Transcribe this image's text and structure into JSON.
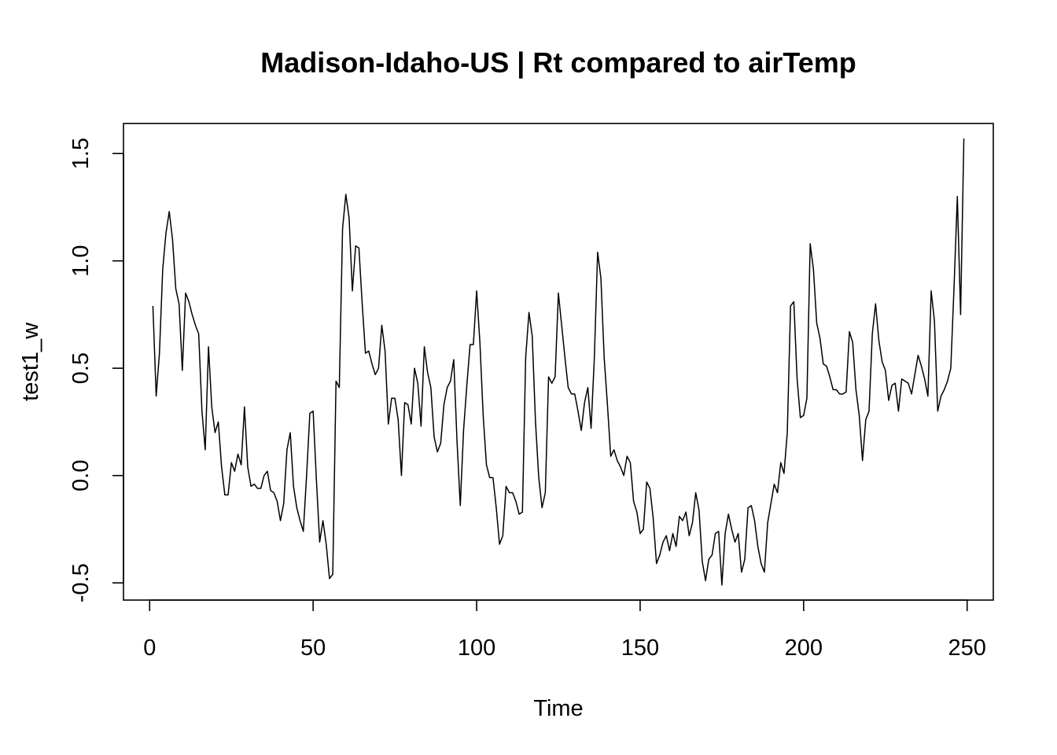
{
  "chart_data": {
    "type": "line",
    "title": "Madison-Idaho-US | Rt compared to airTemp",
    "xlabel": "Time",
    "ylabel": "test1_w",
    "xlim": [
      -8,
      258
    ],
    "ylim": [
      -0.58,
      1.64
    ],
    "x_ticks": [
      0,
      50,
      100,
      150,
      200,
      250
    ],
    "x_tick_labels": [
      "0",
      "50",
      "100",
      "150",
      "200",
      "250"
    ],
    "y_ticks": [
      -0.5,
      0.0,
      0.5,
      1.0,
      1.5
    ],
    "y_tick_labels": [
      "-0.5",
      "0.0",
      "0.5",
      "1.0",
      "1.5"
    ],
    "grid": false,
    "line_color": "#000000",
    "series": [
      {
        "x_start": 1,
        "x_step": 1,
        "values": [
          0.79,
          0.37,
          0.57,
          0.96,
          1.13,
          1.23,
          1.1,
          0.87,
          0.8,
          0.49,
          0.85,
          0.81,
          0.75,
          0.7,
          0.66,
          0.3,
          0.12,
          0.6,
          0.32,
          0.2,
          0.25,
          0.04,
          -0.09,
          -0.09,
          0.06,
          0.02,
          0.1,
          0.05,
          0.32,
          0.04,
          -0.05,
          -0.04,
          -0.06,
          -0.06,
          0.0,
          0.02,
          -0.07,
          -0.08,
          -0.12,
          -0.21,
          -0.13,
          0.12,
          0.2,
          -0.05,
          -0.15,
          -0.21,
          -0.26,
          0.0,
          0.29,
          0.3,
          -0.02,
          -0.31,
          -0.21,
          -0.32,
          -0.48,
          -0.46,
          0.44,
          0.41,
          1.15,
          1.31,
          1.2,
          0.86,
          1.07,
          1.06,
          0.8,
          0.57,
          0.58,
          0.52,
          0.47,
          0.5,
          0.7,
          0.58,
          0.24,
          0.36,
          0.36,
          0.26,
          0.0,
          0.34,
          0.33,
          0.24,
          0.5,
          0.43,
          0.23,
          0.6,
          0.48,
          0.41,
          0.18,
          0.11,
          0.15,
          0.33,
          0.41,
          0.44,
          0.54,
          0.16,
          -0.14,
          0.21,
          0.42,
          0.61,
          0.61,
          0.86,
          0.62,
          0.28,
          0.05,
          -0.01,
          -0.01,
          -0.15,
          -0.32,
          -0.28,
          -0.05,
          -0.08,
          -0.08,
          -0.12,
          -0.18,
          -0.17,
          0.55,
          0.76,
          0.65,
          0.25,
          -0.01,
          -0.15,
          -0.08,
          0.46,
          0.43,
          0.46,
          0.85,
          0.7,
          0.55,
          0.41,
          0.38,
          0.38,
          0.3,
          0.21,
          0.34,
          0.41,
          0.22,
          0.55,
          1.04,
          0.92,
          0.55,
          0.33,
          0.09,
          0.12,
          0.07,
          0.04,
          0.0,
          0.09,
          0.06,
          -0.12,
          -0.17,
          -0.27,
          -0.25,
          -0.03,
          -0.06,
          -0.2,
          -0.41,
          -0.37,
          -0.31,
          -0.28,
          -0.35,
          -0.27,
          -0.33,
          -0.19,
          -0.21,
          -0.17,
          -0.28,
          -0.22,
          -0.08,
          -0.16,
          -0.4,
          -0.49,
          -0.39,
          -0.37,
          -0.27,
          -0.26,
          -0.51,
          -0.27,
          -0.18,
          -0.25,
          -0.31,
          -0.27,
          -0.45,
          -0.39,
          -0.15,
          -0.14,
          -0.21,
          -0.33,
          -0.41,
          -0.45,
          -0.22,
          -0.13,
          -0.04,
          -0.08,
          0.06,
          0.01,
          0.2,
          0.79,
          0.81,
          0.45,
          0.27,
          0.28,
          0.36,
          1.08,
          0.96,
          0.71,
          0.64,
          0.52,
          0.51,
          0.46,
          0.4,
          0.4,
          0.38,
          0.38,
          0.39,
          0.67,
          0.62,
          0.4,
          0.28,
          0.07,
          0.26,
          0.3,
          0.66,
          0.8,
          0.63,
          0.53,
          0.49,
          0.35,
          0.42,
          0.43,
          0.3,
          0.45,
          0.44,
          0.43,
          0.38,
          0.47,
          0.56,
          0.51,
          0.45,
          0.37,
          0.86,
          0.72,
          0.3,
          0.37,
          0.4,
          0.44,
          0.5,
          0.88,
          1.3,
          0.75,
          1.57
        ]
      }
    ]
  }
}
